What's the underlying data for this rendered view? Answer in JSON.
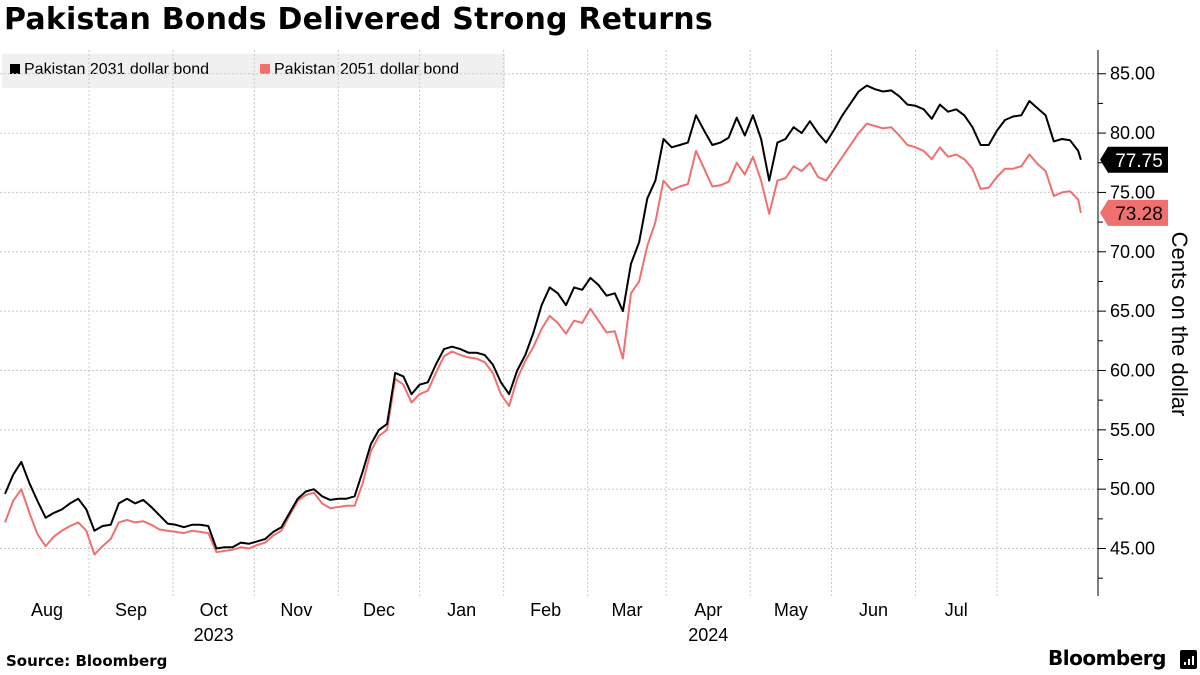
{
  "title": "Pakistan Bonds Delivered Strong Returns",
  "source": "Source: Bloomberg",
  "brand": "Bloomberg",
  "legend": [
    {
      "label": "Pakistan 2031 dollar bond",
      "color": "#000000"
    },
    {
      "label": "Pakistan 2051 dollar bond",
      "color": "#f07070"
    }
  ],
  "chart_data": {
    "type": "line",
    "title": "Pakistan Bonds Delivered Strong Returns",
    "xlabel": "",
    "ylabel": "Cents on the dollar",
    "ylim": [
      41,
      87
    ],
    "yticks": [
      45,
      50,
      55,
      60,
      65,
      70,
      75,
      80,
      85
    ],
    "ytick_labels": [
      "45.00",
      "50.00",
      "55.00",
      "60.00",
      "65.00",
      "70.00",
      "75.00",
      "80.00",
      "85.00"
    ],
    "x_range": [
      "2023-08-01",
      "2024-07-31"
    ],
    "month_labels": [
      "Aug",
      "Sep",
      "Oct",
      "Nov",
      "Dec",
      "Jan",
      "Feb",
      "Mar",
      "Apr",
      "May",
      "Jun",
      "Jul"
    ],
    "year_labels": [
      {
        "label": "2023",
        "under": "Oct"
      },
      {
        "label": "2024",
        "under": "Apr"
      }
    ],
    "grid": true,
    "legend_position": "top-left",
    "series": [
      {
        "name": "Pakistan 2031 dollar bond",
        "color": "#000000",
        "last_value_label": "77.75",
        "points": [
          [
            0,
            49.6
          ],
          [
            3,
            51.2
          ],
          [
            6,
            52.3
          ],
          [
            9,
            50.5
          ],
          [
            12,
            49
          ],
          [
            15,
            47.6
          ],
          [
            18,
            48
          ],
          [
            21,
            48.3
          ],
          [
            24,
            48.8
          ],
          [
            27,
            49.2
          ],
          [
            30,
            48.3
          ],
          [
            33,
            46.5
          ],
          [
            36,
            46.9
          ],
          [
            39,
            47
          ],
          [
            42,
            48.8
          ],
          [
            45,
            49.2
          ],
          [
            48,
            48.8
          ],
          [
            51,
            49.1
          ],
          [
            54,
            48.5
          ],
          [
            57,
            47.8
          ],
          [
            60,
            47.1
          ],
          [
            63,
            47
          ],
          [
            66,
            46.8
          ],
          [
            69,
            47
          ],
          [
            72,
            47
          ],
          [
            75,
            46.9
          ],
          [
            78,
            45
          ],
          [
            81,
            45.1
          ],
          [
            84,
            45.1
          ],
          [
            87,
            45.5
          ],
          [
            90,
            45.4
          ],
          [
            93,
            45.6
          ],
          [
            96,
            45.8
          ],
          [
            99,
            46.4
          ],
          [
            102,
            46.8
          ],
          [
            105,
            48
          ],
          [
            108,
            49.2
          ],
          [
            111,
            49.8
          ],
          [
            114,
            50
          ],
          [
            117,
            49.4
          ],
          [
            120,
            49.1
          ],
          [
            123,
            49.2
          ],
          [
            126,
            49.2
          ],
          [
            129,
            49.4
          ],
          [
            132,
            51.5
          ],
          [
            135,
            53.8
          ],
          [
            138,
            55
          ],
          [
            141,
            55.5
          ],
          [
            144,
            59.8
          ],
          [
            147,
            59.5
          ],
          [
            150,
            58
          ],
          [
            153,
            58.8
          ],
          [
            156,
            59
          ],
          [
            159,
            60.5
          ],
          [
            162,
            61.8
          ],
          [
            165,
            62
          ],
          [
            168,
            61.8
          ],
          [
            171,
            61.5
          ],
          [
            174,
            61.5
          ],
          [
            177,
            61.3
          ],
          [
            180,
            60.5
          ],
          [
            183,
            59
          ],
          [
            186,
            58
          ],
          [
            189,
            60
          ],
          [
            192,
            61.3
          ],
          [
            195,
            63.2
          ],
          [
            198,
            65.5
          ],
          [
            201,
            67
          ],
          [
            204,
            66.5
          ],
          [
            207,
            65.5
          ],
          [
            210,
            67
          ],
          [
            213,
            66.8
          ],
          [
            216,
            67.8
          ],
          [
            219,
            67.2
          ],
          [
            222,
            66.3
          ],
          [
            225,
            66.5
          ],
          [
            228,
            65
          ],
          [
            231,
            69
          ],
          [
            234,
            70.8
          ],
          [
            237,
            74.5
          ],
          [
            240,
            76
          ],
          [
            243,
            79.5
          ],
          [
            246,
            78.8
          ],
          [
            249,
            79
          ],
          [
            252,
            79.2
          ],
          [
            255,
            81.5
          ],
          [
            258,
            80.2
          ],
          [
            261,
            79
          ],
          [
            264,
            79.2
          ],
          [
            267,
            79.6
          ],
          [
            270,
            81.3
          ],
          [
            273,
            79.8
          ],
          [
            276,
            81.5
          ],
          [
            279,
            79.5
          ],
          [
            282,
            76
          ],
          [
            285,
            79.2
          ],
          [
            288,
            79.5
          ],
          [
            291,
            80.5
          ],
          [
            294,
            80
          ],
          [
            297,
            81
          ],
          [
            300,
            80
          ],
          [
            303,
            79.2
          ],
          [
            306,
            80.3
          ],
          [
            309,
            81.5
          ],
          [
            312,
            82.5
          ],
          [
            315,
            83.5
          ],
          [
            318,
            84
          ],
          [
            321,
            83.7
          ],
          [
            324,
            83.5
          ],
          [
            327,
            83.6
          ],
          [
            330,
            83.1
          ],
          [
            333,
            82.4
          ],
          [
            336,
            82.3
          ],
          [
            339,
            82
          ],
          [
            342,
            81.2
          ],
          [
            345,
            82.4
          ],
          [
            348,
            81.8
          ],
          [
            351,
            82
          ],
          [
            354,
            81.5
          ],
          [
            357,
            80.5
          ],
          [
            360,
            79
          ],
          [
            363,
            79
          ],
          [
            366,
            80.2
          ],
          [
            369,
            81.1
          ],
          [
            372,
            81.4
          ],
          [
            375,
            81.5
          ],
          [
            378,
            82.7
          ],
          [
            381,
            82.1
          ],
          [
            384,
            81.5
          ],
          [
            387,
            79.3
          ],
          [
            390,
            79.5
          ],
          [
            393,
            79.4
          ],
          [
            396,
            78.5
          ],
          [
            397,
            77.75
          ]
        ]
      },
      {
        "name": "Pakistan 2051 dollar bond",
        "color": "#f07070",
        "last_value_label": "73.28",
        "points": [
          [
            0,
            47.2
          ],
          [
            3,
            49
          ],
          [
            6,
            50
          ],
          [
            9,
            48
          ],
          [
            12,
            46.2
          ],
          [
            15,
            45.2
          ],
          [
            18,
            46
          ],
          [
            21,
            46.5
          ],
          [
            24,
            46.9
          ],
          [
            27,
            47.2
          ],
          [
            30,
            46.5
          ],
          [
            33,
            44.5
          ],
          [
            36,
            45.2
          ],
          [
            39,
            45.8
          ],
          [
            42,
            47.2
          ],
          [
            45,
            47.4
          ],
          [
            48,
            47.2
          ],
          [
            51,
            47.3
          ],
          [
            54,
            47
          ],
          [
            57,
            46.6
          ],
          [
            60,
            46.5
          ],
          [
            63,
            46.4
          ],
          [
            66,
            46.3
          ],
          [
            69,
            46.5
          ],
          [
            72,
            46.4
          ],
          [
            75,
            46.3
          ],
          [
            78,
            44.7
          ],
          [
            81,
            44.8
          ],
          [
            84,
            44.9
          ],
          [
            87,
            45.1
          ],
          [
            90,
            45
          ],
          [
            93,
            45.3
          ],
          [
            96,
            45.5
          ],
          [
            99,
            46.1
          ],
          [
            102,
            46.5
          ],
          [
            105,
            47.8
          ],
          [
            108,
            49
          ],
          [
            111,
            49.5
          ],
          [
            114,
            49.7
          ],
          [
            117,
            48.8
          ],
          [
            120,
            48.4
          ],
          [
            123,
            48.5
          ],
          [
            126,
            48.6
          ],
          [
            129,
            48.6
          ],
          [
            132,
            50.5
          ],
          [
            135,
            53.2
          ],
          [
            138,
            54.5
          ],
          [
            141,
            55
          ],
          [
            144,
            59.3
          ],
          [
            147,
            58.8
          ],
          [
            150,
            57.3
          ],
          [
            153,
            58
          ],
          [
            156,
            58.3
          ],
          [
            159,
            59.8
          ],
          [
            162,
            61.2
          ],
          [
            165,
            61.6
          ],
          [
            168,
            61.3
          ],
          [
            171,
            61.1
          ],
          [
            174,
            61
          ],
          [
            177,
            60.7
          ],
          [
            180,
            59.8
          ],
          [
            183,
            58
          ],
          [
            186,
            57
          ],
          [
            189,
            59.3
          ],
          [
            192,
            60.8
          ],
          [
            195,
            62
          ],
          [
            198,
            63.5
          ],
          [
            201,
            64.6
          ],
          [
            204,
            64
          ],
          [
            207,
            63.1
          ],
          [
            210,
            64.2
          ],
          [
            213,
            64
          ],
          [
            216,
            65.2
          ],
          [
            219,
            64.2
          ],
          [
            222,
            63.2
          ],
          [
            225,
            63.3
          ],
          [
            228,
            61
          ],
          [
            231,
            66.5
          ],
          [
            234,
            67.5
          ],
          [
            237,
            70.5
          ],
          [
            240,
            72.5
          ],
          [
            243,
            76
          ],
          [
            246,
            75.2
          ],
          [
            249,
            75.5
          ],
          [
            252,
            75.7
          ],
          [
            255,
            78.5
          ],
          [
            258,
            77
          ],
          [
            261,
            75.5
          ],
          [
            264,
            75.6
          ],
          [
            267,
            75.9
          ],
          [
            270,
            77.5
          ],
          [
            273,
            76.5
          ],
          [
            276,
            78
          ],
          [
            279,
            76
          ],
          [
            282,
            73.2
          ],
          [
            285,
            76
          ],
          [
            288,
            76.2
          ],
          [
            291,
            77.2
          ],
          [
            294,
            76.8
          ],
          [
            297,
            77.5
          ],
          [
            300,
            76.3
          ],
          [
            303,
            76
          ],
          [
            306,
            77
          ],
          [
            309,
            78
          ],
          [
            312,
            79
          ],
          [
            315,
            80
          ],
          [
            318,
            80.8
          ],
          [
            321,
            80.6
          ],
          [
            324,
            80.4
          ],
          [
            327,
            80.5
          ],
          [
            330,
            79.8
          ],
          [
            333,
            79
          ],
          [
            336,
            78.8
          ],
          [
            339,
            78.5
          ],
          [
            342,
            77.8
          ],
          [
            345,
            78.8
          ],
          [
            348,
            78
          ],
          [
            351,
            78.2
          ],
          [
            354,
            77.8
          ],
          [
            357,
            77
          ],
          [
            360,
            75.3
          ],
          [
            363,
            75.4
          ],
          [
            366,
            76.3
          ],
          [
            369,
            77
          ],
          [
            372,
            77
          ],
          [
            375,
            77.2
          ],
          [
            378,
            78.2
          ],
          [
            381,
            77.4
          ],
          [
            384,
            76.8
          ],
          [
            387,
            74.7
          ],
          [
            390,
            75
          ],
          [
            393,
            75.1
          ],
          [
            396,
            74.4
          ],
          [
            397,
            73.28
          ]
        ]
      }
    ]
  }
}
